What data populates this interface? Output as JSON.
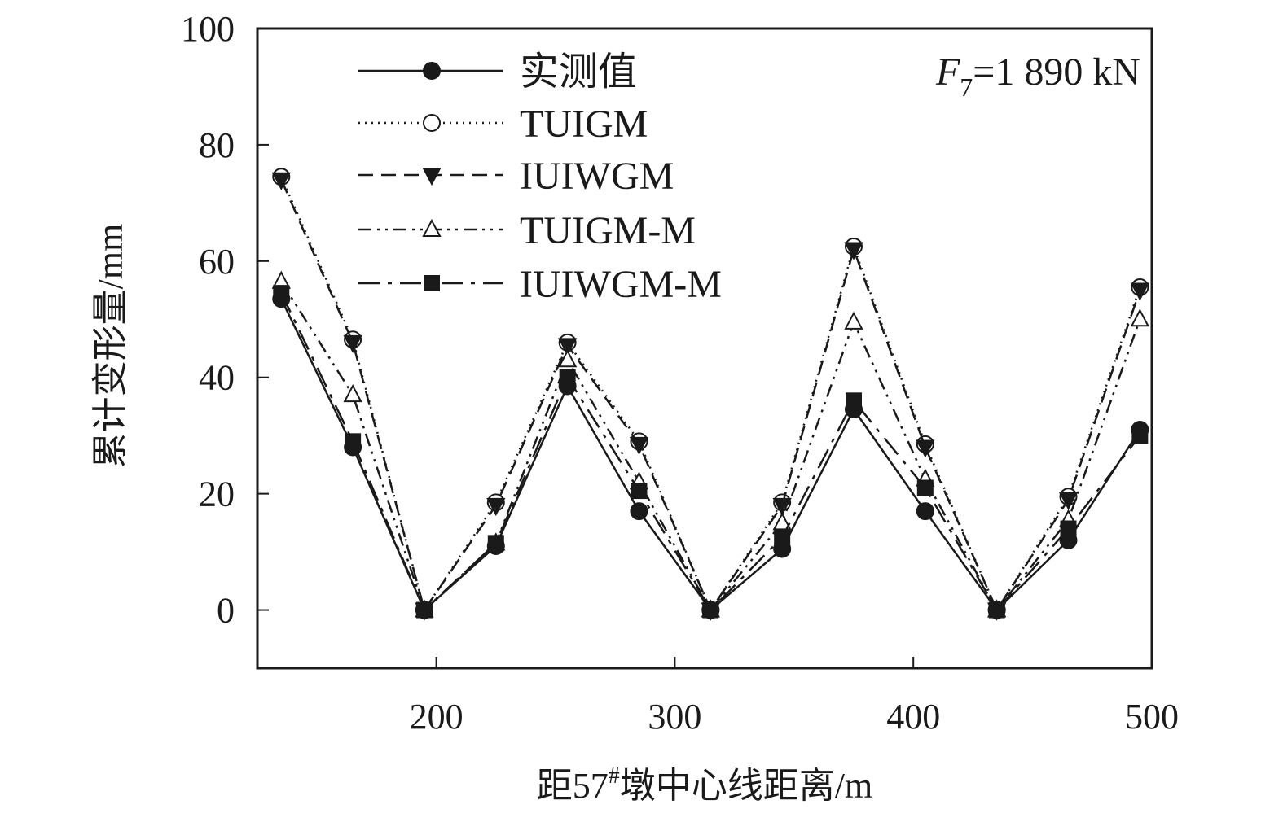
{
  "chart_data": {
    "type": "line",
    "xlabel": "距57#墩中心线距离/m",
    "ylabel": "累计变形量/mm",
    "annotation": "F7=1 890 kN",
    "xlim": [
      125,
      500
    ],
    "ylim": [
      -10,
      100
    ],
    "xticks": [
      200,
      300,
      400,
      500
    ],
    "yticks": [
      0,
      20,
      40,
      60,
      80,
      100
    ],
    "grid": false,
    "legend_position": "top-left",
    "x": [
      135,
      165,
      195,
      225,
      255,
      285,
      315,
      345,
      375,
      405,
      435,
      465,
      495
    ],
    "series": [
      {
        "name": "实测值",
        "style": "solid",
        "marker": "filled-circle",
        "values": [
          53.5,
          28,
          0,
          11,
          38.5,
          17,
          0,
          10.5,
          34.5,
          17,
          0,
          12,
          31
        ]
      },
      {
        "name": "TUIGM",
        "style": "dotted",
        "marker": "open-circle",
        "values": [
          74.5,
          46.5,
          0,
          18.5,
          46,
          29,
          0,
          18.5,
          62.5,
          28.5,
          0,
          19.5,
          55.5
        ]
      },
      {
        "name": "IUIWGM",
        "style": "dashed",
        "marker": "filled-triangle-down",
        "values": [
          74,
          46,
          0,
          18,
          45.5,
          28.5,
          0,
          18,
          62,
          28,
          0,
          19,
          55
        ]
      },
      {
        "name": "TUIGM-M",
        "style": "dash-dot-dot",
        "marker": "open-triangle-up",
        "values": [
          56.5,
          37,
          0,
          11.5,
          43,
          22,
          0,
          15,
          49.5,
          22.5,
          0,
          15.5,
          50
        ]
      },
      {
        "name": "IUIWGM-M",
        "style": "long-dash-dot",
        "marker": "filled-square",
        "values": [
          54.5,
          29,
          0,
          11.5,
          40,
          20.5,
          0,
          12.5,
          36,
          21,
          0,
          14,
          30
        ]
      }
    ]
  },
  "annotation_parts": {
    "main": "F",
    "sub": "7",
    "rest": "=1 890 kN"
  },
  "xlabel_parts": {
    "pre": "距57",
    "sup": "#",
    "post": "墩中心线距离/m"
  }
}
